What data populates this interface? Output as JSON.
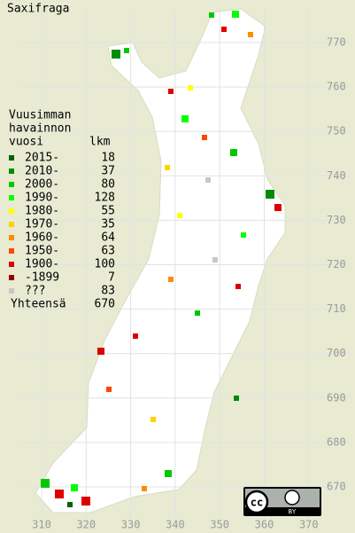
{
  "map": {
    "title": "Saxifraga",
    "legend": {
      "heading": [
        "Vuusimman",
        "havainnon",
        "vuosi"
      ],
      "count_heading": "lkm",
      "rows": [
        {
          "label": "2015-",
          "count": 18,
          "color": "#006400"
        },
        {
          "label": "2010-",
          "count": 37,
          "color": "#008c00"
        },
        {
          "label": "2000-",
          "count": 80,
          "color": "#00c800"
        },
        {
          "label": "1990-",
          "count": 128,
          "color": "#00ff00"
        },
        {
          "label": "1980-",
          "count": 55,
          "color": "#ffff00"
        },
        {
          "label": "1970-",
          "count": 35,
          "color": "#ffd200"
        },
        {
          "label": "1960-",
          "count": 64,
          "color": "#ff8c00"
        },
        {
          "label": "1950-",
          "count": 63,
          "color": "#ff4600"
        },
        {
          "label": "1900-",
          "count": 100,
          "color": "#dc0000"
        },
        {
          "label": "-1899",
          "count": 7,
          "color": "#960000"
        },
        {
          "label": "???",
          "count": 83,
          "color": "#c8c8c8"
        }
      ],
      "total_label": "Yhteensä",
      "total": 670
    },
    "yticks": [
      770,
      760,
      750,
      740,
      730,
      720,
      710,
      700,
      690,
      680,
      670
    ],
    "xticks": [
      310,
      320,
      330,
      340,
      350,
      360,
      370
    ],
    "badge": {
      "icon": "cc",
      "label": "BY"
    }
  }
}
